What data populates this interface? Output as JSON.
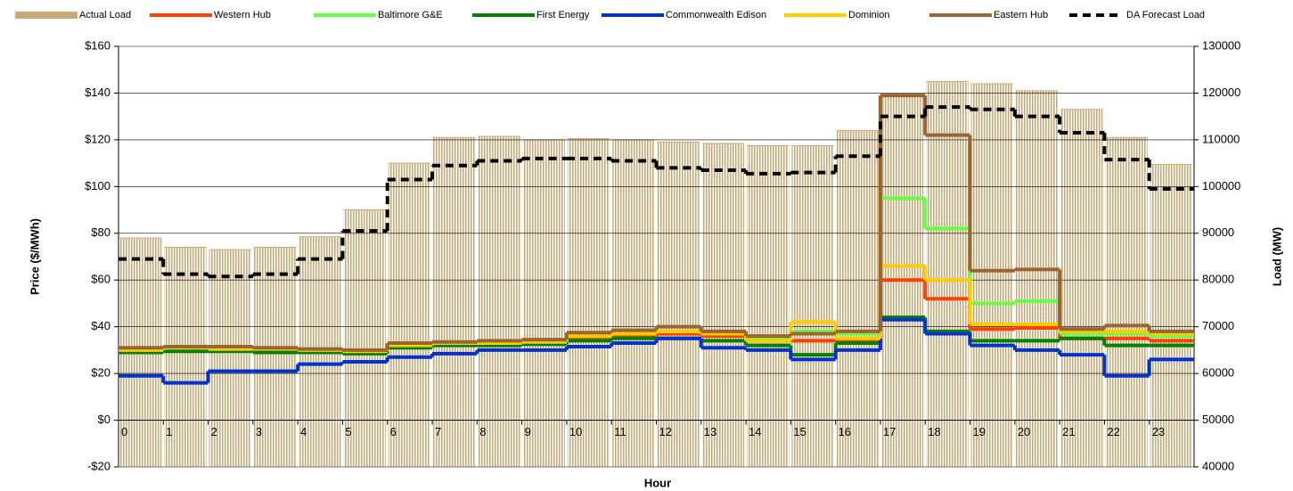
{
  "chart_data": {
    "type": "step",
    "x_label": "Hour",
    "y_label": "Price ($/MWh)",
    "y2_label": "Load (MW)",
    "categories": [
      "0",
      "1",
      "2",
      "3",
      "4",
      "5",
      "6",
      "7",
      "8",
      "9",
      "10",
      "11",
      "12",
      "13",
      "14",
      "15",
      "16",
      "17",
      "18",
      "19",
      "20",
      "21",
      "22",
      "23"
    ],
    "ylim": [
      -20,
      160
    ],
    "yticks": [
      {
        "value": -20,
        "label": "-$20"
      },
      {
        "value": 0,
        "label": "$0"
      },
      {
        "value": 20,
        "label": "$20"
      },
      {
        "value": 40,
        "label": "$40"
      },
      {
        "value": 60,
        "label": "$60"
      },
      {
        "value": 80,
        "label": "$80"
      },
      {
        "value": 100,
        "label": "$100"
      },
      {
        "value": 120,
        "label": "$120"
      },
      {
        "value": 140,
        "label": "$140"
      },
      {
        "value": 160,
        "label": "$160"
      }
    ],
    "y2lim": [
      40000,
      130000
    ],
    "y2ticks": [
      40000,
      50000,
      60000,
      70000,
      80000,
      90000,
      100000,
      110000,
      120000,
      130000
    ],
    "grid": true,
    "legend": "top",
    "series": [
      {
        "name": "Actual Load",
        "color": "#c8ab78",
        "kind": "bar",
        "axis": "y2",
        "values": [
          89000,
          87000,
          86500,
          87000,
          89250,
          95000,
          105000,
          110500,
          110750,
          110000,
          110250,
          110000,
          109500,
          109250,
          108750,
          108750,
          112000,
          119500,
          122500,
          122000,
          120500,
          116500,
          110500,
          104750
        ]
      },
      {
        "name": "Western Hub",
        "color": "#ff4000",
        "values": [
          30,
          30.5,
          30.5,
          30.5,
          30,
          29.5,
          32,
          33,
          33,
          33.5,
          35,
          36,
          37,
          36,
          34,
          34,
          34,
          60,
          52,
          39,
          39.5,
          35,
          35,
          34
        ]
      },
      {
        "name": "Baltimore G&E",
        "color": "#66ff44",
        "values": [
          30,
          30.5,
          30.5,
          30,
          29.5,
          29.5,
          31.5,
          32.5,
          33,
          33.5,
          36,
          37,
          38,
          37,
          35,
          38,
          37,
          95,
          82,
          50,
          51,
          37,
          37,
          36
        ]
      },
      {
        "name": "First Energy",
        "color": "#008000",
        "values": [
          29,
          29.5,
          29.5,
          29,
          29,
          28.5,
          31,
          32,
          32,
          32.5,
          34,
          35,
          35,
          34,
          32,
          28,
          33,
          44,
          38,
          34,
          34,
          35,
          32,
          32
        ]
      },
      {
        "name": "Commonwealth Edison",
        "color": "#0033cc",
        "values": [
          19,
          16,
          21,
          21,
          24,
          25,
          27,
          28.5,
          30,
          30,
          31.5,
          33,
          35,
          31,
          30,
          26,
          30,
          43,
          37,
          32,
          30,
          28,
          19,
          26
        ]
      },
      {
        "name": "Dominion",
        "color": "#ffcc00",
        "values": [
          30,
          31,
          30.5,
          30.5,
          30,
          29.5,
          32,
          33,
          33,
          33.5,
          36,
          37,
          38,
          37,
          34,
          42,
          35,
          66,
          60,
          41,
          41,
          38,
          38,
          37
        ]
      },
      {
        "name": "Eastern Hub",
        "color": "#996633",
        "values": [
          31,
          31.5,
          31.5,
          31,
          30.5,
          30,
          33,
          33.5,
          34,
          34.5,
          37.5,
          38.5,
          40,
          38,
          36,
          37,
          38,
          139,
          122,
          64,
          64.5,
          39,
          40.5,
          38
        ]
      },
      {
        "name": "DA Forecast Load",
        "color": "#000000",
        "kind": "dashed",
        "axis": "y2",
        "values": [
          84500,
          81250,
          80750,
          81250,
          84500,
          90500,
          101500,
          104500,
          105500,
          106000,
          106000,
          105500,
          104000,
          103500,
          102750,
          103000,
          106500,
          115000,
          117000,
          116500,
          115000,
          111500,
          105750,
          99500
        ]
      }
    ]
  }
}
